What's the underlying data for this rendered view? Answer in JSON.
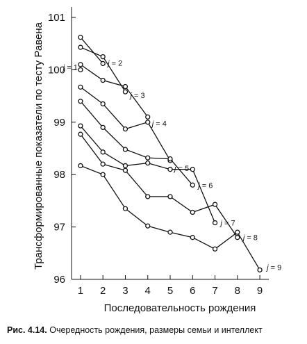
{
  "chart_data": {
    "type": "line",
    "xlabel": "Последовательность рождения",
    "ylabel": "Трансформированные показатели по тесту Равена",
    "x_ticks": [
      1,
      2,
      3,
      4,
      5,
      6,
      7,
      8,
      9
    ],
    "y_ticks": [
      96,
      97,
      98,
      99,
      100,
      101
    ],
    "xlim": [
      0.6,
      9.4
    ],
    "ylim": [
      96,
      101.2
    ],
    "grid": false,
    "legend": "none",
    "series": [
      {
        "label_var": "j",
        "label_value": "= 1",
        "x": [
          1
        ],
        "y": [
          100.0
        ]
      },
      {
        "label_var": "j",
        "label_value": "= 2",
        "x": [
          1,
          2
        ],
        "y": [
          100.62,
          100.12
        ]
      },
      {
        "label_var": "j",
        "label_value": "= 3",
        "x": [
          1,
          2,
          3
        ],
        "y": [
          100.43,
          100.25,
          99.58
        ]
      },
      {
        "label_var": "j",
        "label_value": "= 4",
        "x": [
          1,
          2,
          3,
          4
        ],
        "y": [
          100.1,
          99.8,
          99.68,
          99.1
        ]
      },
      {
        "label_var": "j",
        "label_value": "= 5",
        "x": [
          1,
          2,
          3,
          4,
          5
        ],
        "y": [
          99.67,
          99.35,
          98.87,
          99.0,
          98.27
        ]
      },
      {
        "label_var": "j",
        "label_value": "= 6",
        "x": [
          1,
          2,
          3,
          4,
          5,
          6
        ],
        "y": [
          99.4,
          98.9,
          98.48,
          98.32,
          98.3,
          97.8
        ]
      },
      {
        "label_var": "j",
        "label_value": "= 7",
        "x": [
          1,
          2,
          3,
          4,
          5,
          6,
          7
        ],
        "y": [
          98.93,
          98.43,
          98.17,
          98.22,
          98.1,
          98.1,
          97.08
        ]
      },
      {
        "label_var": "j",
        "label_value": "= 8",
        "x": [
          1,
          2,
          3,
          4,
          5,
          6,
          7,
          8
        ],
        "y": [
          98.77,
          98.2,
          98.08,
          97.58,
          97.58,
          97.28,
          97.43,
          96.8
        ]
      },
      {
        "label_var": "j",
        "label_value": "= 9",
        "x": [
          1,
          2,
          3,
          4,
          5,
          6,
          7,
          8,
          9
        ],
        "y": [
          98.17,
          98.0,
          97.35,
          97.02,
          96.9,
          96.8,
          96.58,
          96.9,
          96.18
        ]
      }
    ]
  },
  "caption": {
    "number": "Рис. 4.14.",
    "text": "Очередность рождения, размеры семьи и интеллект"
  }
}
